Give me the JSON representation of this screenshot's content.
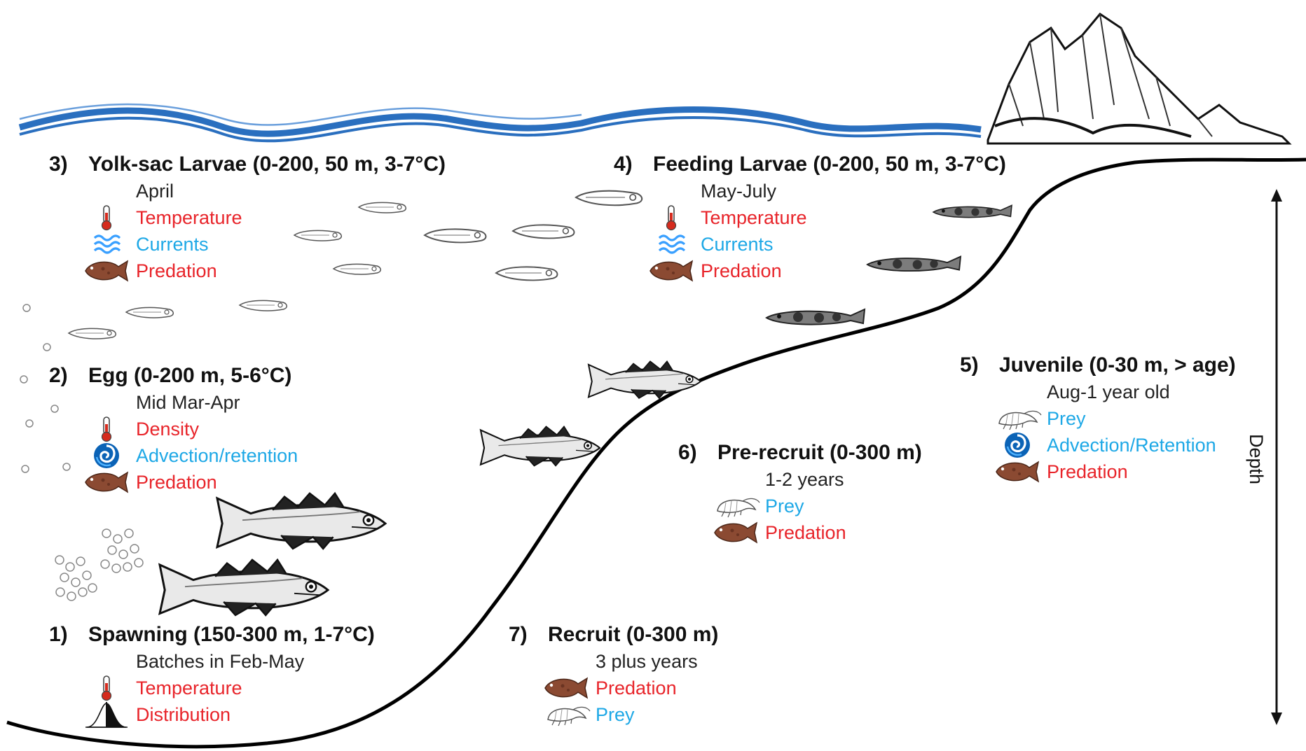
{
  "colors": {
    "wave": "#2a6fbf",
    "red_text": "#e8242a",
    "blue_text": "#1ea8e6",
    "seabed": "#000000"
  },
  "depth_label": "Depth",
  "stages": [
    {
      "id": "yolk",
      "number": "3)",
      "title": "Yolk-sac Larvae (0-200, 50 m, 3-7°C)",
      "items": [
        {
          "icon": "none",
          "text": "April",
          "color": "black"
        },
        {
          "icon": "thermometer-icon",
          "text": "Temperature",
          "color": "red"
        },
        {
          "icon": "currents-icon",
          "text": "Currents",
          "color": "blue"
        },
        {
          "icon": "flatfish-icon",
          "text": "Predation",
          "color": "red"
        }
      ]
    },
    {
      "id": "feeding",
      "number": "4)",
      "title": "Feeding Larvae (0-200, 50 m, 3-7°C)",
      "items": [
        {
          "icon": "none",
          "text": "May-July",
          "color": "black"
        },
        {
          "icon": "thermometer-icon",
          "text": "Temperature",
          "color": "red"
        },
        {
          "icon": "currents-icon",
          "text": "Currents",
          "color": "blue"
        },
        {
          "icon": "flatfish-icon",
          "text": "Predation",
          "color": "red"
        }
      ]
    },
    {
      "id": "egg",
      "number": "2)",
      "title": "Egg (0-200 m, 5-6°C)",
      "items": [
        {
          "icon": "none",
          "text": "Mid Mar-Apr",
          "color": "black"
        },
        {
          "icon": "thermometer-icon",
          "text": "Density",
          "color": "red"
        },
        {
          "icon": "swirl-icon",
          "text": "Advection/retention",
          "color": "blue"
        },
        {
          "icon": "flatfish-icon",
          "text": "Predation",
          "color": "red"
        }
      ]
    },
    {
      "id": "juvenile",
      "number": "5)",
      "title": "Juvenile (0-30 m, > age)",
      "items": [
        {
          "icon": "none",
          "text": "Aug-1 year old",
          "color": "black"
        },
        {
          "icon": "shrimp-icon",
          "text": "Prey",
          "color": "blue"
        },
        {
          "icon": "swirl-icon",
          "text": "Advection/Retention",
          "color": "blue"
        },
        {
          "icon": "flatfish-icon",
          "text": "Predation",
          "color": "red"
        }
      ]
    },
    {
      "id": "prerecruit",
      "number": "6)",
      "title": "Pre-recruit (0-300 m)",
      "items": [
        {
          "icon": "none",
          "text": "1-2 years",
          "color": "black"
        },
        {
          "icon": "shrimp-icon",
          "text": "Prey",
          "color": "blue"
        },
        {
          "icon": "flatfish-icon",
          "text": "Predation",
          "color": "red"
        }
      ]
    },
    {
      "id": "spawning",
      "number": "1)",
      "title": "Spawning (150-300 m, 1-7°C)",
      "items": [
        {
          "icon": "none",
          "text": "Batches in Feb-May",
          "color": "black"
        },
        {
          "icon": "thermometer-icon",
          "text": "Temperature",
          "color": "red"
        },
        {
          "icon": "distribution-icon",
          "text": "Distribution",
          "color": "red"
        }
      ]
    },
    {
      "id": "recruit",
      "number": "7)",
      "title": "Recruit (0-300 m)",
      "items": [
        {
          "icon": "none",
          "text": "3 plus years",
          "color": "black"
        },
        {
          "icon": "flatfish-icon",
          "text": "Predation",
          "color": "red"
        },
        {
          "icon": "shrimp-icon",
          "text": "Prey",
          "color": "blue"
        }
      ]
    }
  ]
}
